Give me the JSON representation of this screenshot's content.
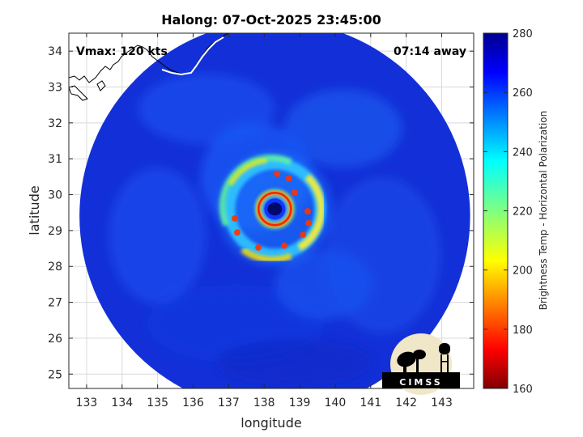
{
  "chart_data": {
    "type": "heatmap",
    "title": "Halong: 07-Oct-2025 23:45:00",
    "xlabel": "longitude",
    "ylabel": "latitude",
    "xlim": [
      132.5,
      143.9
    ],
    "ylim": [
      24.6,
      34.5
    ],
    "xticks": [
      133,
      134,
      135,
      136,
      137,
      138,
      139,
      140,
      141,
      142,
      143
    ],
    "yticks": [
      25,
      26,
      27,
      28,
      29,
      30,
      31,
      32,
      33,
      34
    ],
    "grid": true,
    "annotations": {
      "left": "Vmax: 120 kts",
      "right": "07:14 away"
    },
    "storm_center": {
      "lon": 138.3,
      "lat": 29.6
    },
    "swath_center": {
      "lon": 138.3,
      "lat": 29.4
    },
    "swath_radius_deg": 5.5,
    "colorbar": {
      "label": "Brightness Temp - Horizontal Polarization",
      "range": [
        160,
        280
      ],
      "ticks": [
        160,
        180,
        200,
        220,
        240,
        260,
        280
      ],
      "colormap": "jet"
    }
  },
  "logo": {
    "text": "CIMSS"
  },
  "colors": {
    "background_field": "#1230d8",
    "coast": "#000000",
    "grid": "#d9d9d9"
  }
}
